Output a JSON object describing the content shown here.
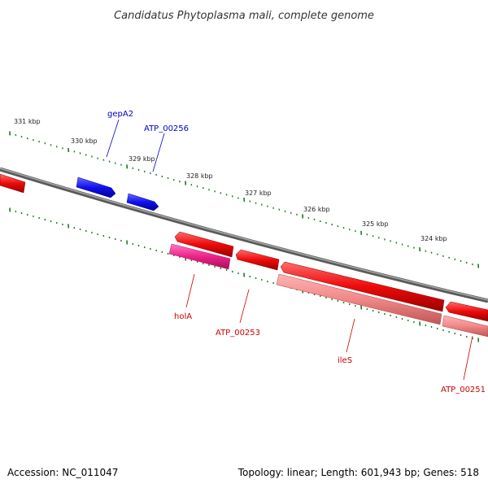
{
  "title": "Candidatus Phytoplasma mali, complete genome",
  "footer": {
    "accession_label": "Accession:",
    "accession": "NC_011047",
    "topology_label": "Topology:",
    "topology": "linear",
    "length_label": "Length:",
    "length": "601,943 bp",
    "genes_label": "Genes:",
    "genes": "518"
  },
  "footer_text": {
    "left": "Accession: NC_011047",
    "right": "Topology: linear; Length: 601,943 bp; Genes: 518"
  },
  "ruler": {
    "unit": "kbp",
    "labels": [
      "331 kbp",
      "330 kbp",
      "329 kbp",
      "328 kbp",
      "327 kbp",
      "326 kbp",
      "325 kbp",
      "324 kbp"
    ]
  },
  "genes_forward": [
    {
      "name": "gepA2",
      "label": "gepA2"
    },
    {
      "name": "ATP_00256",
      "label": "ATP_00256"
    }
  ],
  "genes_reverse": [
    {
      "name": "holA",
      "label": "holA"
    },
    {
      "name": "ATP_00253",
      "label": "ATP_00253"
    },
    {
      "name": "ileS",
      "label": "ileS"
    },
    {
      "name": "ATP_00251",
      "label": "ATP_00251"
    }
  ],
  "colors": {
    "backbone": "#808080",
    "forward_gene": "#1a1aee",
    "reverse_gene": "#ee1111",
    "reverse_gene_highlight": "#ee2288",
    "reverse_gene_light": "#f08888",
    "ticks": "#1a7a1a",
    "forward_label": "#0000cc",
    "reverse_label": "#cc0000"
  },
  "icons": {
    "forward_gene": "arrow-right-block",
    "reverse_gene": "arrow-left-block"
  }
}
